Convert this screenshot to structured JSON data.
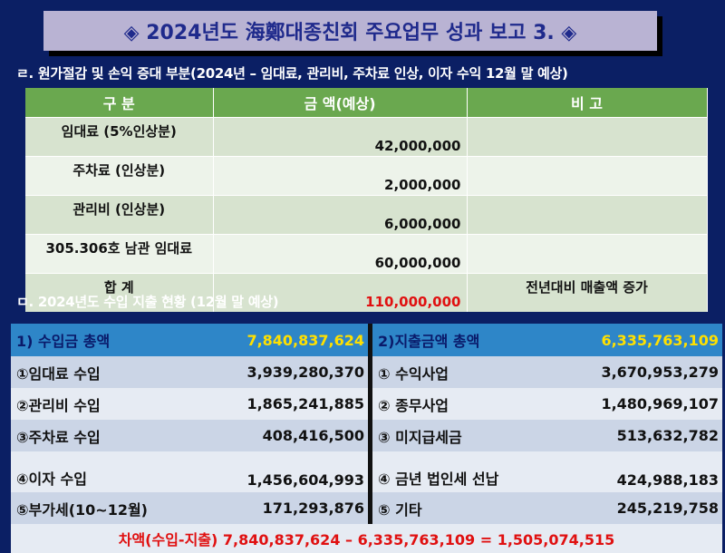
{
  "title": "◈ 2024년도 海鄭대종친회 주요업무 성과 보고 3. ◈",
  "section1": {
    "label": "ㄹ. 원가절감 및 손익 증대 부분(2024년 – 임대료, 관리비, 주차료 인상, 이자 수익 12월 말 예상)",
    "headers": [
      "구 분",
      "금      액(예상)",
      "비 고"
    ],
    "rows": [
      {
        "item": "임대료 (5%인상분)",
        "amount": "42,000,000",
        "note": ""
      },
      {
        "item": "주차료 (인상분)",
        "amount": "2,000,000",
        "note": ""
      },
      {
        "item": "관리비 (인상분)",
        "amount": "6,000,000",
        "note": ""
      },
      {
        "item": "305.306호 남관 임대료",
        "amount": "60,000,000",
        "note": ""
      },
      {
        "item": "합    계",
        "amount": "110,000,000",
        "note": "전년대비 매출액 증가"
      }
    ]
  },
  "section2": {
    "label": "ㅁ. 2024년도 수입 지출 현황 (12월 말 예상)",
    "income_total_label": "1) 수입금 총액",
    "income_total": "7,840,837,624",
    "expense_total_label": "2)지출금액 총액",
    "expense_total": "6,335,763,109",
    "rows": [
      {
        "in_label": "①임대료 수입",
        "in_amount": "3,939,280,370",
        "out_label": "① 수익사업",
        "out_amount": "3,670,953,279"
      },
      {
        "in_label": "②관리비 수입",
        "in_amount": "1,865,241,885",
        "out_label": "② 종무사업",
        "out_amount": "1,480,969,107"
      },
      {
        "in_label": "③주차료 수입",
        "in_amount": "408,416,500",
        "out_label": "③ 미지급세금",
        "out_amount": "513,632,782"
      },
      {
        "in_label": "④이자 수입",
        "in_amount": "1,456,604,993",
        "out_label": "④ 금년 법인세 선납",
        "out_amount": "424,988,183"
      },
      {
        "in_label": "⑤부가세(10~12월)",
        "in_amount": "171,293,876",
        "out_label": "⑤ 기타",
        "out_amount": "245,219,758"
      }
    ],
    "difference": "차액(수입-지출)  7,840,837,624 – 6,335,763,109 = 1,505,074,515"
  }
}
